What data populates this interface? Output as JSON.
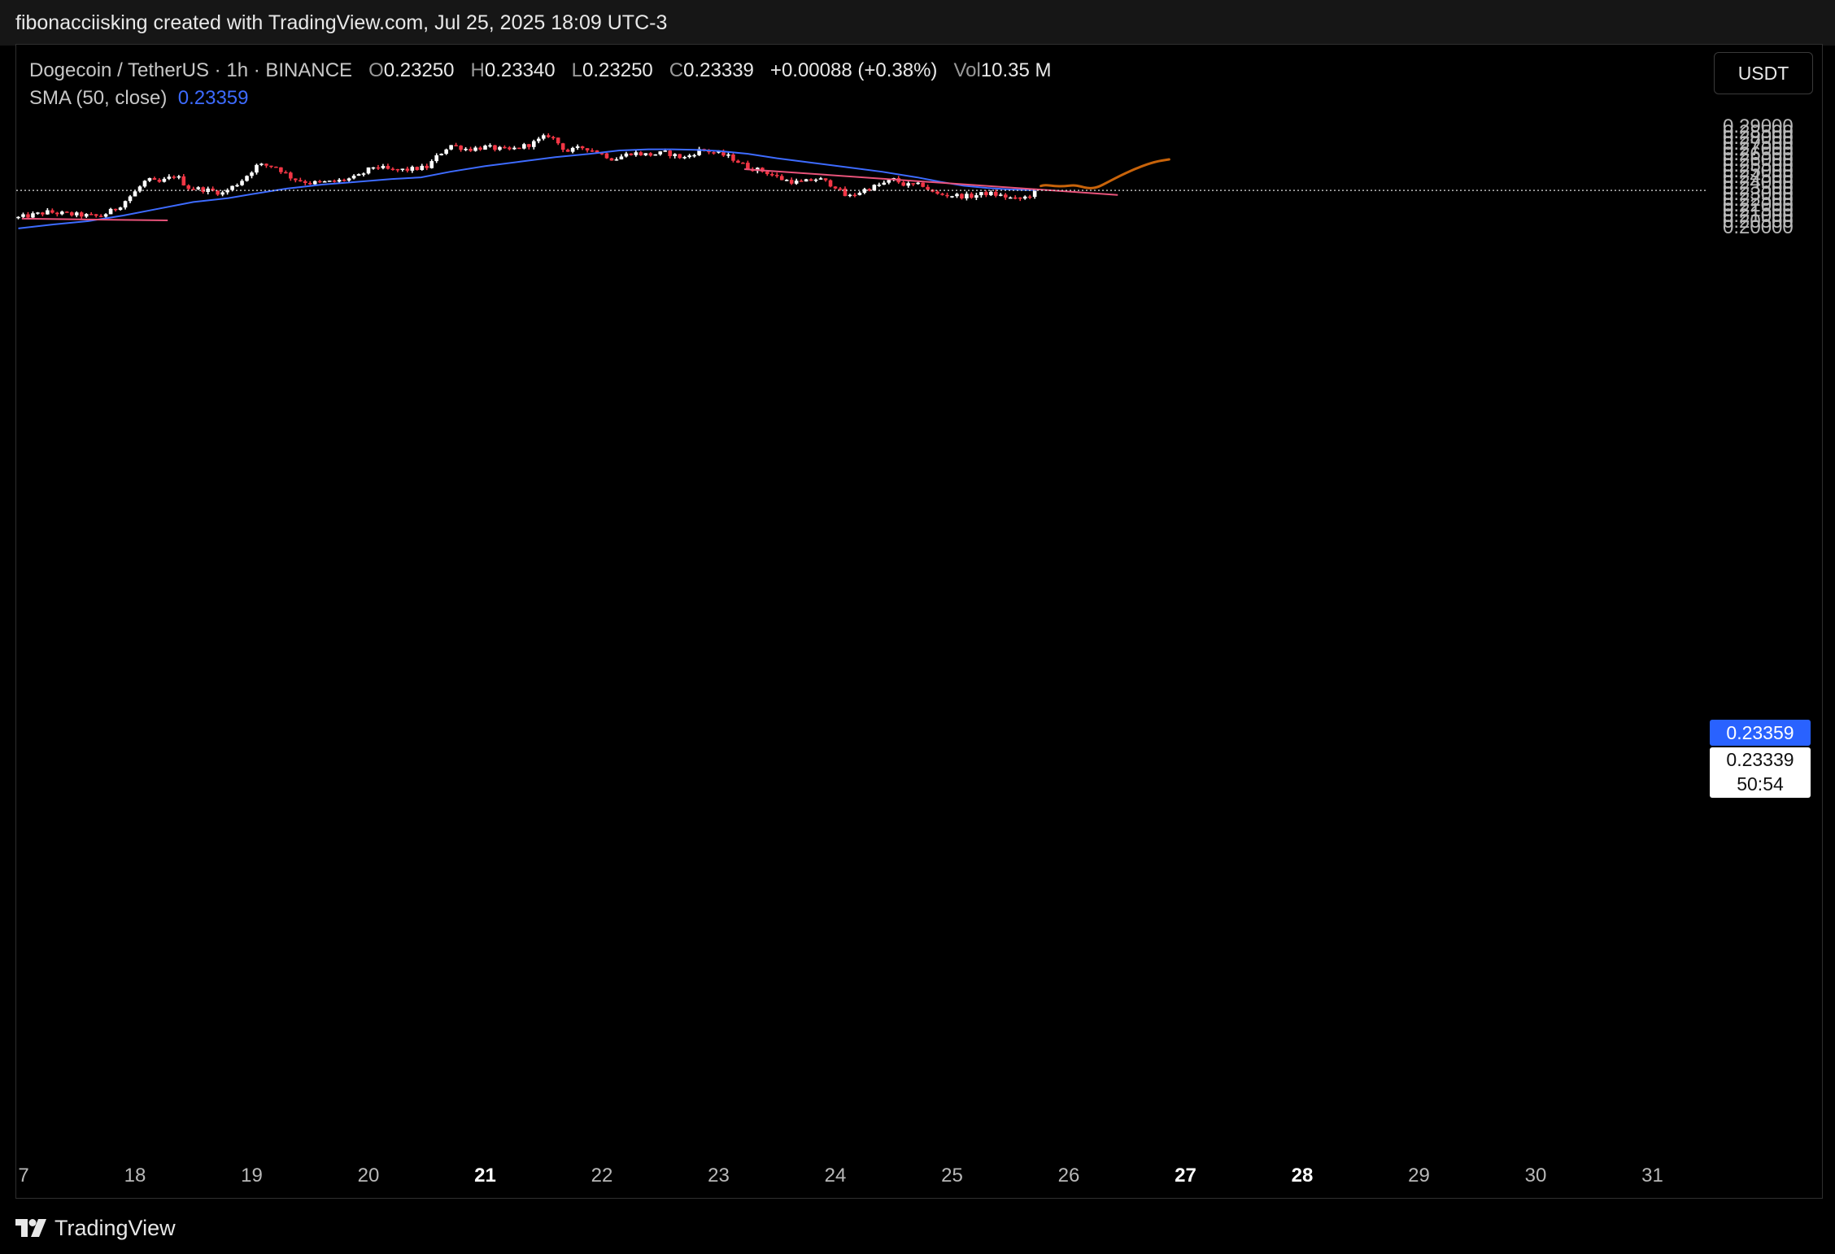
{
  "header": {
    "attribution": "fibonacciisking created with TradingView.com, Jul 25, 2025 18:09 UTC-3"
  },
  "legend": {
    "symbol": "Dogecoin / TetherUS · 1h · BINANCE",
    "open_label": "O",
    "open": "0.23250",
    "high_label": "H",
    "high": "0.23340",
    "low_label": "L",
    "low": "0.23250",
    "close_label": "C",
    "close": "0.23339",
    "change": "+0.00088 (+0.38%)",
    "vol_label": "Vol",
    "vol": "10.35 M",
    "sma_label": "SMA (50, close)",
    "sma_value": "0.23359"
  },
  "currency_button": "USDT",
  "price_tags": {
    "sma": "0.23359",
    "last": "0.23339",
    "countdown": "50:54"
  },
  "footer": {
    "brand": "TradingView"
  },
  "colors": {
    "up": "#ffffff",
    "down": "#f23645",
    "sma": "#3d6bff",
    "trendline": "#e8537a",
    "projection": "#c8630a",
    "background": "#000000"
  },
  "chart_data": {
    "type": "candlestick",
    "symbol": "DOGE/USDT",
    "timeframe": "1h",
    "y_ticks": [
      "0.29000",
      "0.28500",
      "0.28000",
      "0.27500",
      "0.27000",
      "0.26500",
      "0.26000",
      "0.25500",
      "0.25000",
      "0.24500",
      "0.24000",
      "0.23500",
      "0.23000",
      "0.22500",
      "0.22000",
      "0.21500",
      "0.21000",
      "0.20500",
      "0.20000"
    ],
    "ylim": [
      0.1985,
      0.2935
    ],
    "x_ticks": [
      {
        "day": 17,
        "label": "7",
        "bold": false
      },
      {
        "day": 18,
        "label": "18",
        "bold": false
      },
      {
        "day": 19,
        "label": "19",
        "bold": false
      },
      {
        "day": 20,
        "label": "20",
        "bold": false
      },
      {
        "day": 21,
        "label": "21",
        "bold": true
      },
      {
        "day": 22,
        "label": "22",
        "bold": false
      },
      {
        "day": 23,
        "label": "23",
        "bold": false
      },
      {
        "day": 24,
        "label": "24",
        "bold": false
      },
      {
        "day": 25,
        "label": "25",
        "bold": false
      },
      {
        "day": 26,
        "label": "26",
        "bold": false
      },
      {
        "day": 27,
        "label": "27",
        "bold": true
      },
      {
        "day": 28,
        "label": "28",
        "bold": true
      },
      {
        "day": 29,
        "label": "29",
        "bold": false
      },
      {
        "day": 30,
        "label": "30",
        "bold": false
      },
      {
        "day": 31,
        "label": "31",
        "bold": false
      }
    ],
    "xlim_days": [
      17.0,
      28.45
    ],
    "close_path": [
      [
        17.0,
        0.209
      ],
      [
        17.25,
        0.214
      ],
      [
        17.45,
        0.212
      ],
      [
        17.7,
        0.21
      ],
      [
        17.85,
        0.218
      ],
      [
        18.0,
        0.232
      ],
      [
        18.1,
        0.243
      ],
      [
        18.2,
        0.24
      ],
      [
        18.35,
        0.247
      ],
      [
        18.45,
        0.236
      ],
      [
        18.6,
        0.234
      ],
      [
        18.75,
        0.231
      ],
      [
        18.9,
        0.241
      ],
      [
        19.05,
        0.256
      ],
      [
        19.2,
        0.255
      ],
      [
        19.35,
        0.244
      ],
      [
        19.5,
        0.24
      ],
      [
        19.7,
        0.241
      ],
      [
        19.9,
        0.245
      ],
      [
        20.05,
        0.255
      ],
      [
        20.2,
        0.251
      ],
      [
        20.35,
        0.252
      ],
      [
        20.5,
        0.254
      ],
      [
        20.6,
        0.265
      ],
      [
        20.7,
        0.274
      ],
      [
        20.85,
        0.27
      ],
      [
        21.0,
        0.272
      ],
      [
        21.2,
        0.269
      ],
      [
        21.4,
        0.275
      ],
      [
        21.55,
        0.283
      ],
      [
        21.7,
        0.268
      ],
      [
        21.85,
        0.272
      ],
      [
        22.0,
        0.266
      ],
      [
        22.1,
        0.261
      ],
      [
        22.25,
        0.267
      ],
      [
        22.4,
        0.265
      ],
      [
        22.55,
        0.267
      ],
      [
        22.7,
        0.262
      ],
      [
        22.85,
        0.27
      ],
      [
        23.0,
        0.266
      ],
      [
        23.1,
        0.263
      ],
      [
        23.25,
        0.254
      ],
      [
        23.4,
        0.25
      ],
      [
        23.55,
        0.243
      ],
      [
        23.7,
        0.24
      ],
      [
        23.85,
        0.244
      ],
      [
        24.0,
        0.237
      ],
      [
        24.1,
        0.227
      ],
      [
        24.25,
        0.234
      ],
      [
        24.4,
        0.239
      ],
      [
        24.5,
        0.243
      ],
      [
        24.6,
        0.238
      ],
      [
        24.75,
        0.238
      ],
      [
        24.85,
        0.23
      ],
      [
        25.0,
        0.229
      ],
      [
        25.15,
        0.228
      ],
      [
        25.3,
        0.231
      ],
      [
        25.45,
        0.228
      ],
      [
        25.55,
        0.225
      ],
      [
        25.65,
        0.228
      ],
      [
        25.72,
        0.2334
      ]
    ],
    "sma": [
      [
        17.0,
        0.1995
      ],
      [
        17.3,
        0.203
      ],
      [
        17.6,
        0.206
      ],
      [
        17.9,
        0.211
      ],
      [
        18.2,
        0.217
      ],
      [
        18.5,
        0.223
      ],
      [
        18.8,
        0.2265
      ],
      [
        19.0,
        0.23
      ],
      [
        19.3,
        0.235
      ],
      [
        19.6,
        0.2385
      ],
      [
        19.9,
        0.241
      ],
      [
        20.2,
        0.2435
      ],
      [
        20.45,
        0.245
      ],
      [
        20.7,
        0.25
      ],
      [
        21.0,
        0.255
      ],
      [
        21.3,
        0.259
      ],
      [
        21.6,
        0.263
      ],
      [
        21.9,
        0.266
      ],
      [
        22.15,
        0.269
      ],
      [
        22.4,
        0.27
      ],
      [
        22.6,
        0.27
      ],
      [
        22.8,
        0.2695
      ],
      [
        23.0,
        0.2685
      ],
      [
        23.25,
        0.266
      ],
      [
        23.5,
        0.262
      ],
      [
        23.8,
        0.258
      ],
      [
        24.1,
        0.254
      ],
      [
        24.4,
        0.25
      ],
      [
        24.7,
        0.245
      ],
      [
        24.9,
        0.241
      ],
      [
        25.1,
        0.2375
      ],
      [
        25.3,
        0.2355
      ],
      [
        25.5,
        0.2342
      ],
      [
        25.72,
        0.2336
      ]
    ],
    "trendlines": [
      {
        "points": [
          [
            17.03,
            0.2082
          ],
          [
            18.28,
            0.2066
          ]
        ]
      },
      {
        "points": [
          [
            23.22,
            0.2523
          ],
          [
            26.42,
            0.2293
          ]
        ]
      }
    ],
    "projection": [
      [
        25.76,
        0.2373
      ],
      [
        25.8,
        0.2383
      ],
      [
        25.88,
        0.2371
      ],
      [
        25.96,
        0.237
      ],
      [
        26.04,
        0.2381
      ],
      [
        26.1,
        0.237
      ],
      [
        26.16,
        0.2352
      ],
      [
        26.24,
        0.2357
      ],
      [
        26.34,
        0.241
      ],
      [
        26.45,
        0.247
      ],
      [
        26.6,
        0.254
      ],
      [
        26.74,
        0.259
      ],
      [
        26.86,
        0.261
      ]
    ],
    "last_price": 0.23339,
    "sma_last": 0.23359
  }
}
